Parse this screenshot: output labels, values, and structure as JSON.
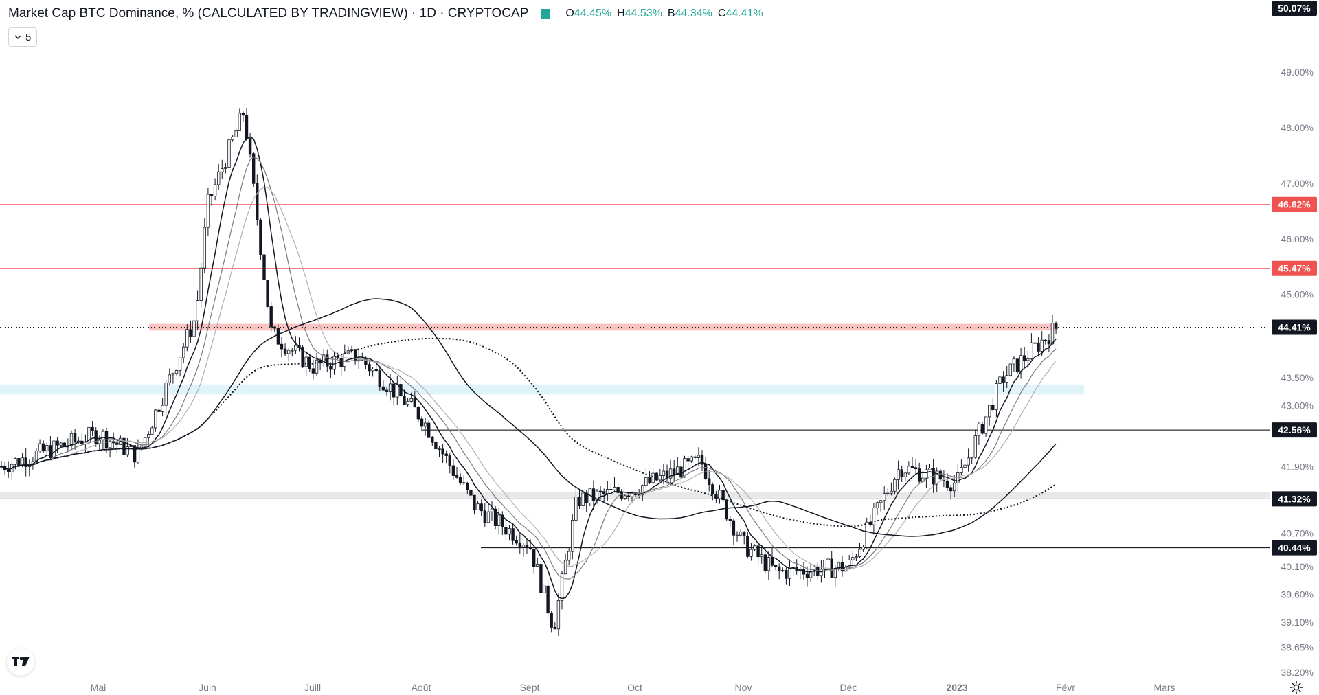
{
  "header": {
    "title": "Market Cap BTC Dominance, % (CALCULATED BY TRADINGVIEW) · 1D · CRYPTOCAP",
    "ohlc": [
      {
        "label": "O",
        "value": "44.45%"
      },
      {
        "label": "H",
        "value": "44.53%"
      },
      {
        "label": "B",
        "value": "44.34%"
      },
      {
        "label": "C",
        "value": "44.41%"
      }
    ],
    "status_color": "#26a69a"
  },
  "indicators_toggle": {
    "count": "5",
    "icon": "chevron-down-icon"
  },
  "colors": {
    "resistance": "#ef5350",
    "support": "#000000",
    "zone_blue": "#dff3f8",
    "zone_gray": "#e8e8e8",
    "candle": "#131722"
  },
  "chart_data": {
    "type": "candlestick",
    "symbol": "CRYPTOCAP",
    "interval": "1D",
    "ylim": [
      38.0,
      50.3
    ],
    "y_ticks": [
      "49.00%",
      "48.00%",
      "47.00%",
      "46.00%",
      "45.00%",
      "43.50%",
      "43.00%",
      "41.90%",
      "40.70%",
      "40.10%",
      "39.60%",
      "39.10%",
      "38.65%",
      "38.20%"
    ],
    "x_labels": [
      "Mai",
      "Juin",
      "Juill",
      "Août",
      "Sept",
      "Oct",
      "Nov",
      "Déc",
      "2023",
      "Févr",
      "Mars"
    ],
    "price_badges": [
      {
        "text": "50.07%",
        "value": 50.07,
        "style": "dark"
      },
      {
        "text": "46.62%",
        "value": 46.62,
        "style": "red"
      },
      {
        "text": "45.47%",
        "value": 45.47,
        "style": "red"
      },
      {
        "text": "44.41%",
        "value": 44.41,
        "style": "current"
      },
      {
        "text": "42.56%",
        "value": 42.56,
        "style": "dark"
      },
      {
        "text": "41.32%",
        "value": 41.32,
        "style": "dark"
      },
      {
        "text": "40.44%",
        "value": 40.44,
        "style": "dark"
      }
    ],
    "horizontal_lines": [
      {
        "value": 46.62,
        "color": "red",
        "from_month": "start"
      },
      {
        "value": 45.47,
        "color": "red",
        "from_month": "start"
      },
      {
        "value": 42.56,
        "color": "black",
        "from_month": "Août"
      },
      {
        "value": 41.32,
        "color": "black",
        "from_month": "start"
      },
      {
        "value": 40.44,
        "color": "black",
        "from_month": "Sept"
      }
    ],
    "zones": [
      {
        "low": 44.35,
        "high": 44.47,
        "color": "red",
        "from_month": "Juin"
      },
      {
        "low": 43.2,
        "high": 43.38,
        "color": "blue",
        "from_month": "start"
      },
      {
        "low": 41.34,
        "high": 41.45,
        "color": "gray",
        "from_month": "start"
      }
    ],
    "current_close": 44.41,
    "close_path": [
      {
        "date": "Apr",
        "close": 41.9
      },
      {
        "date": "Mai",
        "close": 42.5
      },
      {
        "date": "May-mid",
        "close": 42.1
      },
      {
        "date": "May-end",
        "close": 44.6
      },
      {
        "date": "Juin",
        "close": 46.6
      },
      {
        "date": "Jun-mid",
        "close": 48.3
      },
      {
        "date": "Jun-end",
        "close": 44.3
      },
      {
        "date": "Juill",
        "close": 43.7
      },
      {
        "date": "Jul-mid",
        "close": 43.9
      },
      {
        "date": "Août",
        "close": 42.8
      },
      {
        "date": "Aug-mid",
        "close": 41.2
      },
      {
        "date": "Sept",
        "close": 40.5
      },
      {
        "date": "Sep-mid",
        "close": 39.0
      },
      {
        "date": "Sep-end",
        "close": 41.3
      },
      {
        "date": "Oct",
        "close": 41.5
      },
      {
        "date": "Oct-mid",
        "close": 42.0
      },
      {
        "date": "Nov",
        "close": 40.5
      },
      {
        "date": "Nov-mid",
        "close": 40.0
      },
      {
        "date": "Déc",
        "close": 40.1
      },
      {
        "date": "Dec-mid",
        "close": 41.9
      },
      {
        "date": "2023",
        "close": 41.6
      },
      {
        "date": "Jan-mid",
        "close": 43.5
      },
      {
        "date": "Jan-end",
        "close": 44.41
      }
    ]
  }
}
